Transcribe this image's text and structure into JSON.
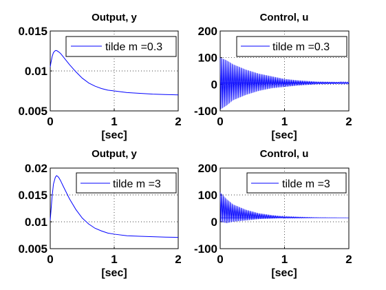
{
  "chart_data": [
    {
      "type": "line",
      "title": "Output, y",
      "xlabel": "[sec]",
      "ylabel": "",
      "xlim": [
        0,
        2
      ],
      "ylim": [
        0.005,
        0.015
      ],
      "xticks": [
        "0",
        "1",
        "2"
      ],
      "yticks": [
        "0.005",
        "0.01",
        "0.015"
      ],
      "ytick_values": [
        0.005,
        0.01,
        0.015
      ],
      "grid": "dotted",
      "legend_position": "top-right",
      "line_color": "#0000ff",
      "series": [
        {
          "name": "tilde m =0.3",
          "x": [
            0,
            0.01,
            0.03,
            0.05,
            0.08,
            0.1,
            0.13,
            0.16,
            0.2,
            0.3,
            0.4,
            0.5,
            0.6,
            0.7,
            0.8,
            0.9,
            1.0,
            1.2,
            1.4,
            1.6,
            1.8,
            2.0
          ],
          "y": [
            0.0105,
            0.011,
            0.0118,
            0.0123,
            0.01255,
            0.01255,
            0.0124,
            0.0122,
            0.0118,
            0.0108,
            0.0099,
            0.0091,
            0.0085,
            0.0081,
            0.0078,
            0.0076,
            0.0075,
            0.0073,
            0.0072,
            0.0071,
            0.00705,
            0.007
          ]
        }
      ]
    },
    {
      "type": "line",
      "title": "Control, u",
      "xlabel": "[sec]",
      "ylabel": "",
      "xlim": [
        0,
        2
      ],
      "ylim": [
        -100,
        200
      ],
      "xticks": [
        "0",
        "1",
        "2"
      ],
      "yticks": [
        "-100",
        "0",
        "100",
        "200"
      ],
      "ytick_values": [
        -100,
        0,
        100,
        200
      ],
      "grid": "dotted",
      "legend_position": "top-right",
      "line_color": "#0000ff",
      "oscillating": true,
      "series": [
        {
          "name": "tilde m =0.3",
          "envelope_x": [
            0,
            0.1,
            0.2,
            0.4,
            0.6,
            0.8,
            1.0,
            1.2,
            1.5,
            2.0
          ],
          "envelope_upper": [
            100,
            90,
            75,
            55,
            40,
            30,
            20,
            15,
            10,
            8
          ],
          "envelope_lower": [
            -95,
            -80,
            -60,
            -40,
            -25,
            -15,
            -10,
            -5,
            0,
            2
          ],
          "final_value": 5
        }
      ]
    },
    {
      "type": "line",
      "title": "Output, y",
      "xlabel": "[sec]",
      "ylabel": "",
      "xlim": [
        0,
        2
      ],
      "ylim": [
        0.005,
        0.02
      ],
      "xticks": [
        "0",
        "1",
        "2"
      ],
      "yticks": [
        "0.005",
        "0.01",
        "0.015",
        "0.02"
      ],
      "ytick_values": [
        0.005,
        0.01,
        0.015,
        0.02
      ],
      "grid": "dotted",
      "legend_position": "top-right",
      "line_color": "#0000ff",
      "series": [
        {
          "name": "tilde m =3",
          "x": [
            0,
            0.01,
            0.03,
            0.05,
            0.08,
            0.1,
            0.13,
            0.16,
            0.2,
            0.3,
            0.4,
            0.5,
            0.6,
            0.7,
            0.8,
            0.9,
            1.0,
            1.2,
            1.4,
            1.6,
            1.8,
            2.0
          ],
          "y": [
            0.0103,
            0.0118,
            0.0148,
            0.017,
            0.0183,
            0.0186,
            0.0183,
            0.0177,
            0.0167,
            0.0143,
            0.0123,
            0.0107,
            0.0096,
            0.0088,
            0.0083,
            0.0079,
            0.0077,
            0.0074,
            0.0073,
            0.00722,
            0.00715,
            0.0071
          ]
        }
      ]
    },
    {
      "type": "line",
      "title": "Control, u",
      "xlabel": "[sec]",
      "ylabel": "",
      "xlim": [
        0,
        2
      ],
      "ylim": [
        -100,
        200
      ],
      "xticks": [
        "0",
        "1",
        "2"
      ],
      "yticks": [
        "-100",
        "0",
        "100",
        "200"
      ],
      "ytick_values": [
        -100,
        0,
        100,
        200
      ],
      "grid": "dotted",
      "legend_position": "top-right",
      "line_color": "#0000ff",
      "oscillating": true,
      "series": [
        {
          "name": "tilde m =3",
          "envelope_x": [
            0,
            0.1,
            0.2,
            0.4,
            0.6,
            0.8,
            1.0,
            1.2,
            1.5,
            2.0
          ],
          "envelope_upper": [
            110,
            85,
            65,
            45,
            32,
            25,
            20,
            18,
            16,
            15
          ],
          "envelope_lower": [
            0,
            -5,
            0,
            5,
            10,
            12,
            14,
            14,
            15,
            15
          ],
          "final_value": 15
        }
      ]
    }
  ]
}
